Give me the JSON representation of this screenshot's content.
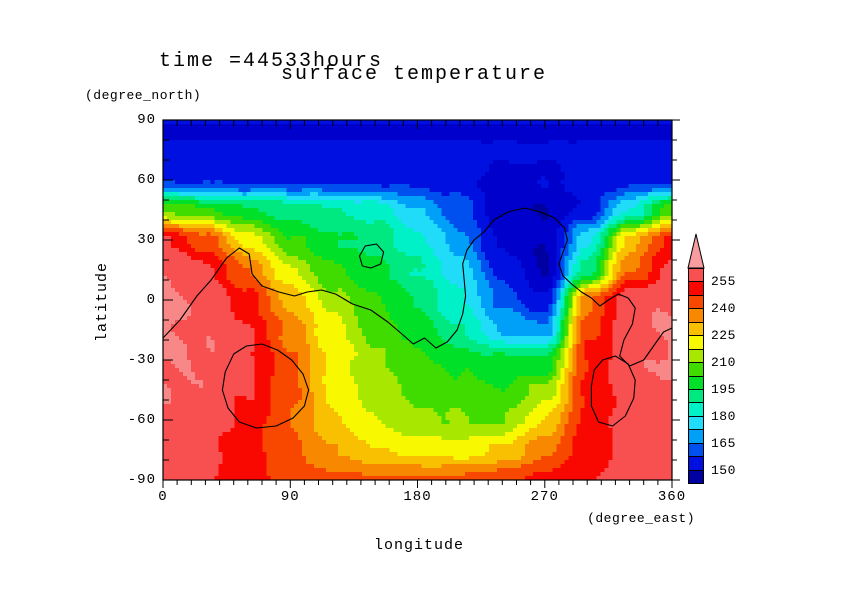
{
  "titles": {
    "time_label": "time =44533hours",
    "plot_title": "surface temperature"
  },
  "axes": {
    "x": {
      "label": "longitude",
      "unit": "(degree_east)",
      "tick_labels": [
        "0",
        "90",
        "180",
        "270",
        "360"
      ]
    },
    "y": {
      "label": "latitude",
      "unit": "(degree_north)",
      "tick_labels": [
        "90",
        "60",
        "30",
        "0",
        "-30",
        "-60",
        "-90"
      ]
    }
  },
  "colorbar": {
    "tick_labels": [
      "255",
      "240",
      "225",
      "210",
      "195",
      "180",
      "165",
      "150"
    ],
    "cell_colors_bottom_to_top": [
      "#0000A0",
      "#0010E0",
      "#0050F0",
      "#00A0F8",
      "#20DCF8",
      "#00F0C8",
      "#00E880",
      "#00E028",
      "#40DC00",
      "#A8E800",
      "#F8F800",
      "#F8C000",
      "#F88800",
      "#F84800",
      "#F80800",
      "#F85050"
    ],
    "arrow_color": "#F89CA0"
  },
  "chart_data": {
    "type": "filled_contour",
    "title": "surface temperature",
    "time_annotation": "time =44533hours",
    "xlabel": "longitude",
    "x_unit": "degree_east",
    "ylabel": "latitude",
    "y_unit": "degree_north",
    "x_range": [
      0,
      360
    ],
    "y_range": [
      -90,
      90
    ],
    "x_ticks": [
      0,
      90,
      180,
      270,
      360
    ],
    "y_ticks": [
      90,
      60,
      30,
      0,
      -30,
      -60,
      -90
    ],
    "colorbar_ticks": [
      150,
      165,
      180,
      195,
      210,
      225,
      240,
      255
    ],
    "levels": {
      "boundaries": [
        142.5,
        150,
        157.5,
        165,
        172.5,
        180,
        187.5,
        195,
        202.5,
        210,
        217.5,
        225,
        232.5,
        240,
        247.5,
        255,
        262.5
      ],
      "colors": [
        "#0000A0",
        "#0000CC",
        "#0010E0",
        "#0050F0",
        "#00A0F8",
        "#20DCF8",
        "#00F0C8",
        "#00E880",
        "#00E028",
        "#40DC00",
        "#A8E800",
        "#F8F800",
        "#F8C000",
        "#F88800",
        "#F84800",
        "#F80800",
        "#F85050",
        "#F88888"
      ]
    },
    "grid": {
      "lons": [
        0,
        30,
        60,
        90,
        120,
        150,
        180,
        210,
        240,
        270,
        300,
        330,
        360
      ],
      "lats": [
        90,
        85,
        75,
        60,
        45,
        30,
        15,
        0,
        -15,
        -30,
        -45,
        -60,
        -75,
        -90
      ],
      "values": [
        [
          152,
          152,
          152,
          152,
          152,
          152,
          152,
          152,
          152,
          152,
          152,
          152,
          152
        ],
        [
          147,
          147,
          147,
          147,
          147,
          147,
          147,
          147,
          147,
          147,
          147,
          147,
          147
        ],
        [
          153,
          153,
          153,
          153,
          153,
          153,
          153,
          153,
          152,
          151,
          152,
          153,
          153
        ],
        [
          156,
          156,
          156,
          156,
          156,
          155,
          155,
          154,
          146,
          149,
          153,
          155,
          156
        ],
        [
          210,
          204,
          196,
          192,
          188,
          185,
          172,
          160,
          146,
          143,
          152,
          180,
          206
        ],
        [
          256,
          244,
          222,
          203,
          196,
          192,
          183,
          168,
          147,
          143,
          178,
          228,
          250
        ],
        [
          262,
          257,
          240,
          218,
          203,
          196,
          188,
          176,
          155,
          142,
          192,
          240,
          257
        ],
        [
          264,
          261,
          250,
          230,
          214,
          204,
          194,
          182,
          163,
          150,
          238,
          260,
          263
        ],
        [
          264,
          261,
          255,
          238,
          220,
          208,
          198,
          188,
          172,
          168,
          245,
          260,
          263
        ],
        [
          263,
          262,
          257,
          242,
          222,
          212,
          205,
          200,
          196,
          196,
          248,
          260,
          263
        ],
        [
          262,
          261,
          256,
          242,
          224,
          213,
          208,
          205,
          203,
          212,
          248,
          260,
          262
        ],
        [
          261,
          259,
          253,
          240,
          227,
          217,
          212,
          210,
          210,
          225,
          250,
          258,
          261
        ],
        [
          258,
          257,
          250,
          241,
          233,
          226,
          222,
          221,
          226,
          238,
          252,
          257,
          258
        ],
        [
          257,
          256,
          250,
          245,
          242,
          241,
          241,
          242,
          245,
          250,
          255,
          256,
          257
        ]
      ]
    },
    "contour_lines": [
      {
        "name": "coastline-main",
        "points": [
          [
            0,
            -19
          ],
          [
            12,
            -10
          ],
          [
            24,
            2
          ],
          [
            34,
            10
          ],
          [
            45,
            21
          ],
          [
            54,
            26
          ],
          [
            61,
            23
          ],
          [
            63,
            13
          ],
          [
            70,
            7
          ],
          [
            82,
            4
          ],
          [
            93,
            2
          ],
          [
            102,
            4
          ],
          [
            112,
            5
          ],
          [
            122,
            3
          ],
          [
            134,
            -2
          ],
          [
            147,
            -5
          ],
          [
            159,
            -11
          ],
          [
            169,
            -17
          ],
          [
            177,
            -22
          ],
          [
            185,
            -19
          ],
          [
            193,
            -24
          ],
          [
            201,
            -21
          ],
          [
            208,
            -15
          ],
          [
            212,
            -7
          ],
          [
            214,
            2
          ],
          [
            213,
            10
          ],
          [
            212,
            18
          ],
          [
            215,
            25
          ],
          [
            220,
            30
          ],
          [
            227,
            34
          ],
          [
            234,
            40
          ],
          [
            244,
            44
          ],
          [
            256,
            46
          ],
          [
            267,
            44
          ],
          [
            277,
            41
          ],
          [
            284,
            36
          ],
          [
            286,
            30
          ],
          [
            283,
            24
          ],
          [
            280,
            18
          ],
          [
            283,
            12
          ],
          [
            289,
            8
          ],
          [
            296,
            4
          ],
          [
            303,
            1
          ],
          [
            309,
            -3
          ],
          [
            315,
            0
          ],
          [
            322,
            3
          ],
          [
            329,
            1
          ],
          [
            334,
            -4
          ],
          [
            332,
            -12
          ],
          [
            326,
            -20
          ],
          [
            323,
            -28
          ],
          [
            330,
            -33
          ],
          [
            340,
            -30
          ],
          [
            348,
            -22
          ],
          [
            354,
            -16
          ],
          [
            360,
            -14
          ]
        ]
      },
      {
        "name": "closed-contour-southwest",
        "points": [
          [
            44,
            -36
          ],
          [
            50,
            -27
          ],
          [
            59,
            -23
          ],
          [
            70,
            -22
          ],
          [
            81,
            -25
          ],
          [
            91,
            -30
          ],
          [
            99,
            -37
          ],
          [
            103,
            -45
          ],
          [
            100,
            -53
          ],
          [
            92,
            -59
          ],
          [
            80,
            -63
          ],
          [
            66,
            -64
          ],
          [
            54,
            -61
          ],
          [
            46,
            -54
          ],
          [
            42,
            -45
          ],
          [
            44,
            -36
          ]
        ]
      },
      {
        "name": "closed-contour-small-north",
        "points": [
          [
            141,
            17
          ],
          [
            139,
            22
          ],
          [
            143,
            27
          ],
          [
            151,
            28
          ],
          [
            156,
            24
          ],
          [
            154,
            18
          ],
          [
            147,
            16
          ],
          [
            141,
            17
          ]
        ]
      },
      {
        "name": "closed-contour-southeast",
        "points": [
          [
            303,
            -43
          ],
          [
            305,
            -35
          ],
          [
            311,
            -30
          ],
          [
            320,
            -28
          ],
          [
            329,
            -32
          ],
          [
            334,
            -40
          ],
          [
            333,
            -49
          ],
          [
            327,
            -58
          ],
          [
            318,
            -63
          ],
          [
            308,
            -61
          ],
          [
            303,
            -53
          ],
          [
            303,
            -43
          ]
        ]
      }
    ]
  }
}
